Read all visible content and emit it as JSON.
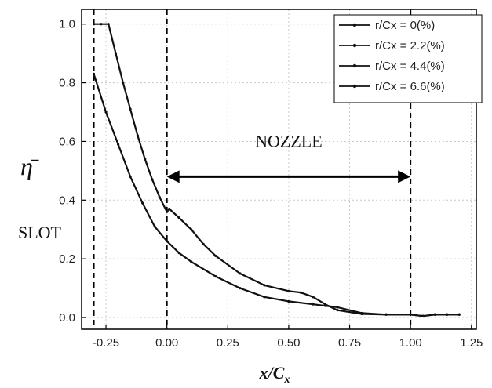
{
  "chart_data": {
    "type": "line",
    "ylabel": "η̄",
    "xlabel_main": "x/C",
    "xlabel_sub": "x",
    "xlim": [
      -0.35,
      1.27
    ],
    "ylim": [
      -0.04,
      1.05
    ],
    "x_ticks": [
      -0.25,
      0.0,
      0.25,
      0.5,
      0.75,
      1.0,
      1.25
    ],
    "x_tick_labels": [
      "-0.25",
      "0.00",
      "0.25",
      "0.50",
      "0.75",
      "1.00",
      "1.25"
    ],
    "y_ticks": [
      0.0,
      0.2,
      0.4,
      0.6,
      0.8,
      1.0
    ],
    "y_tick_labels": [
      "0.0",
      "0.2",
      "0.4",
      "0.6",
      "0.8",
      "1.0"
    ],
    "grid": true,
    "legend_position": "top-right",
    "series": [
      {
        "name": "r/Cx = 0(%)",
        "x": [
          -0.3,
          -0.27,
          -0.24,
          -0.21,
          -0.18,
          -0.15,
          -0.12,
          -0.09,
          -0.06,
          -0.03,
          0.0,
          0.01,
          0.05,
          0.1,
          0.15,
          0.2,
          0.3,
          0.4,
          0.5,
          0.55,
          0.6,
          0.65,
          0.7,
          0.8,
          0.9,
          1.0,
          1.05,
          1.1,
          1.15,
          1.2
        ],
        "y": [
          1.0,
          1.0,
          1.0,
          0.9,
          0.8,
          0.71,
          0.62,
          0.54,
          0.47,
          0.41,
          0.36,
          0.37,
          0.34,
          0.3,
          0.25,
          0.21,
          0.15,
          0.11,
          0.09,
          0.085,
          0.07,
          0.045,
          0.025,
          0.012,
          0.01,
          0.01,
          0.005,
          0.01,
          0.01,
          0.01
        ]
      },
      {
        "name": "r/Cx = 2.2(%)",
        "x": [
          -0.3,
          -0.25,
          -0.2,
          -0.15,
          -0.1,
          -0.05,
          0.0,
          0.05,
          0.1,
          0.2,
          0.3,
          0.4,
          0.5,
          0.6,
          0.65,
          0.7,
          0.8,
          0.9,
          1.0,
          1.05,
          1.1,
          1.15,
          1.2
        ],
        "y": [
          0.83,
          0.7,
          0.59,
          0.48,
          0.39,
          0.31,
          0.26,
          0.22,
          0.19,
          0.14,
          0.1,
          0.07,
          0.055,
          0.045,
          0.04,
          0.035,
          0.015,
          0.01,
          0.01,
          0.005,
          0.01,
          0.01,
          0.01
        ]
      },
      {
        "name": "r/Cx = 4.4(%)",
        "x": [],
        "y": []
      },
      {
        "name": "r/Cx = 6.6(%)",
        "x": [],
        "y": []
      }
    ],
    "vlines": [
      -0.3,
      0.0,
      1.0
    ],
    "annotations": {
      "nozzle": "NOZZLE",
      "slot": "SLOT",
      "arrow_from": 0.0,
      "arrow_to": 1.0,
      "arrow_y": 0.48
    }
  }
}
